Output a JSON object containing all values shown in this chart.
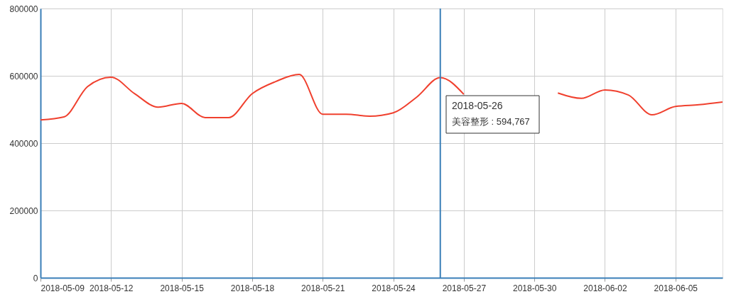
{
  "chart_data": {
    "type": "line",
    "x": [
      "2018-05-09",
      "2018-05-10",
      "2018-05-11",
      "2018-05-12",
      "2018-05-13",
      "2018-05-14",
      "2018-05-15",
      "2018-05-16",
      "2018-05-17",
      "2018-05-18",
      "2018-05-19",
      "2018-05-20",
      "2018-05-21",
      "2018-05-22",
      "2018-05-23",
      "2018-05-24",
      "2018-05-25",
      "2018-05-26",
      "2018-05-27",
      "2018-05-28",
      "2018-05-29",
      "2018-05-30",
      "2018-05-31",
      "2018-06-01",
      "2018-06-02",
      "2018-06-03",
      "2018-06-04",
      "2018-06-05",
      "2018-06-06",
      "2018-06-07"
    ],
    "series": [
      {
        "color": "#f0402e",
        "values": [
          469000,
          478000,
          568000,
          596000,
          547000,
          507000,
          518000,
          476000,
          476000,
          547000,
          583000,
          604000,
          486000,
          486000,
          480000,
          490000,
          537000,
          594767,
          545000,
          null,
          null,
          null,
          549000,
          533000,
          558000,
          543000,
          484000,
          509000,
          514000,
          522000
        ]
      }
    ],
    "xlim": [
      "2018-05-09",
      "2018-06-07"
    ],
    "xticks": [
      "2018-05-09",
      "2018-05-12",
      "2018-05-15",
      "2018-05-18",
      "2018-05-21",
      "2018-05-24",
      "2018-05-27",
      "2018-05-30",
      "2018-06-02",
      "2018-06-05"
    ],
    "ylim": [
      0,
      800000
    ],
    "yticks": [
      0,
      200000,
      400000,
      600000,
      800000
    ],
    "grid": true,
    "marker": "none",
    "line_style": "solid",
    "ref_lines": [
      {
        "axis": "x",
        "value": "2018-05-26",
        "color": "#3a7fb8"
      }
    ],
    "annotations": [
      "2018-05-26",
      "美容整形 : 594,767"
    ]
  }
}
